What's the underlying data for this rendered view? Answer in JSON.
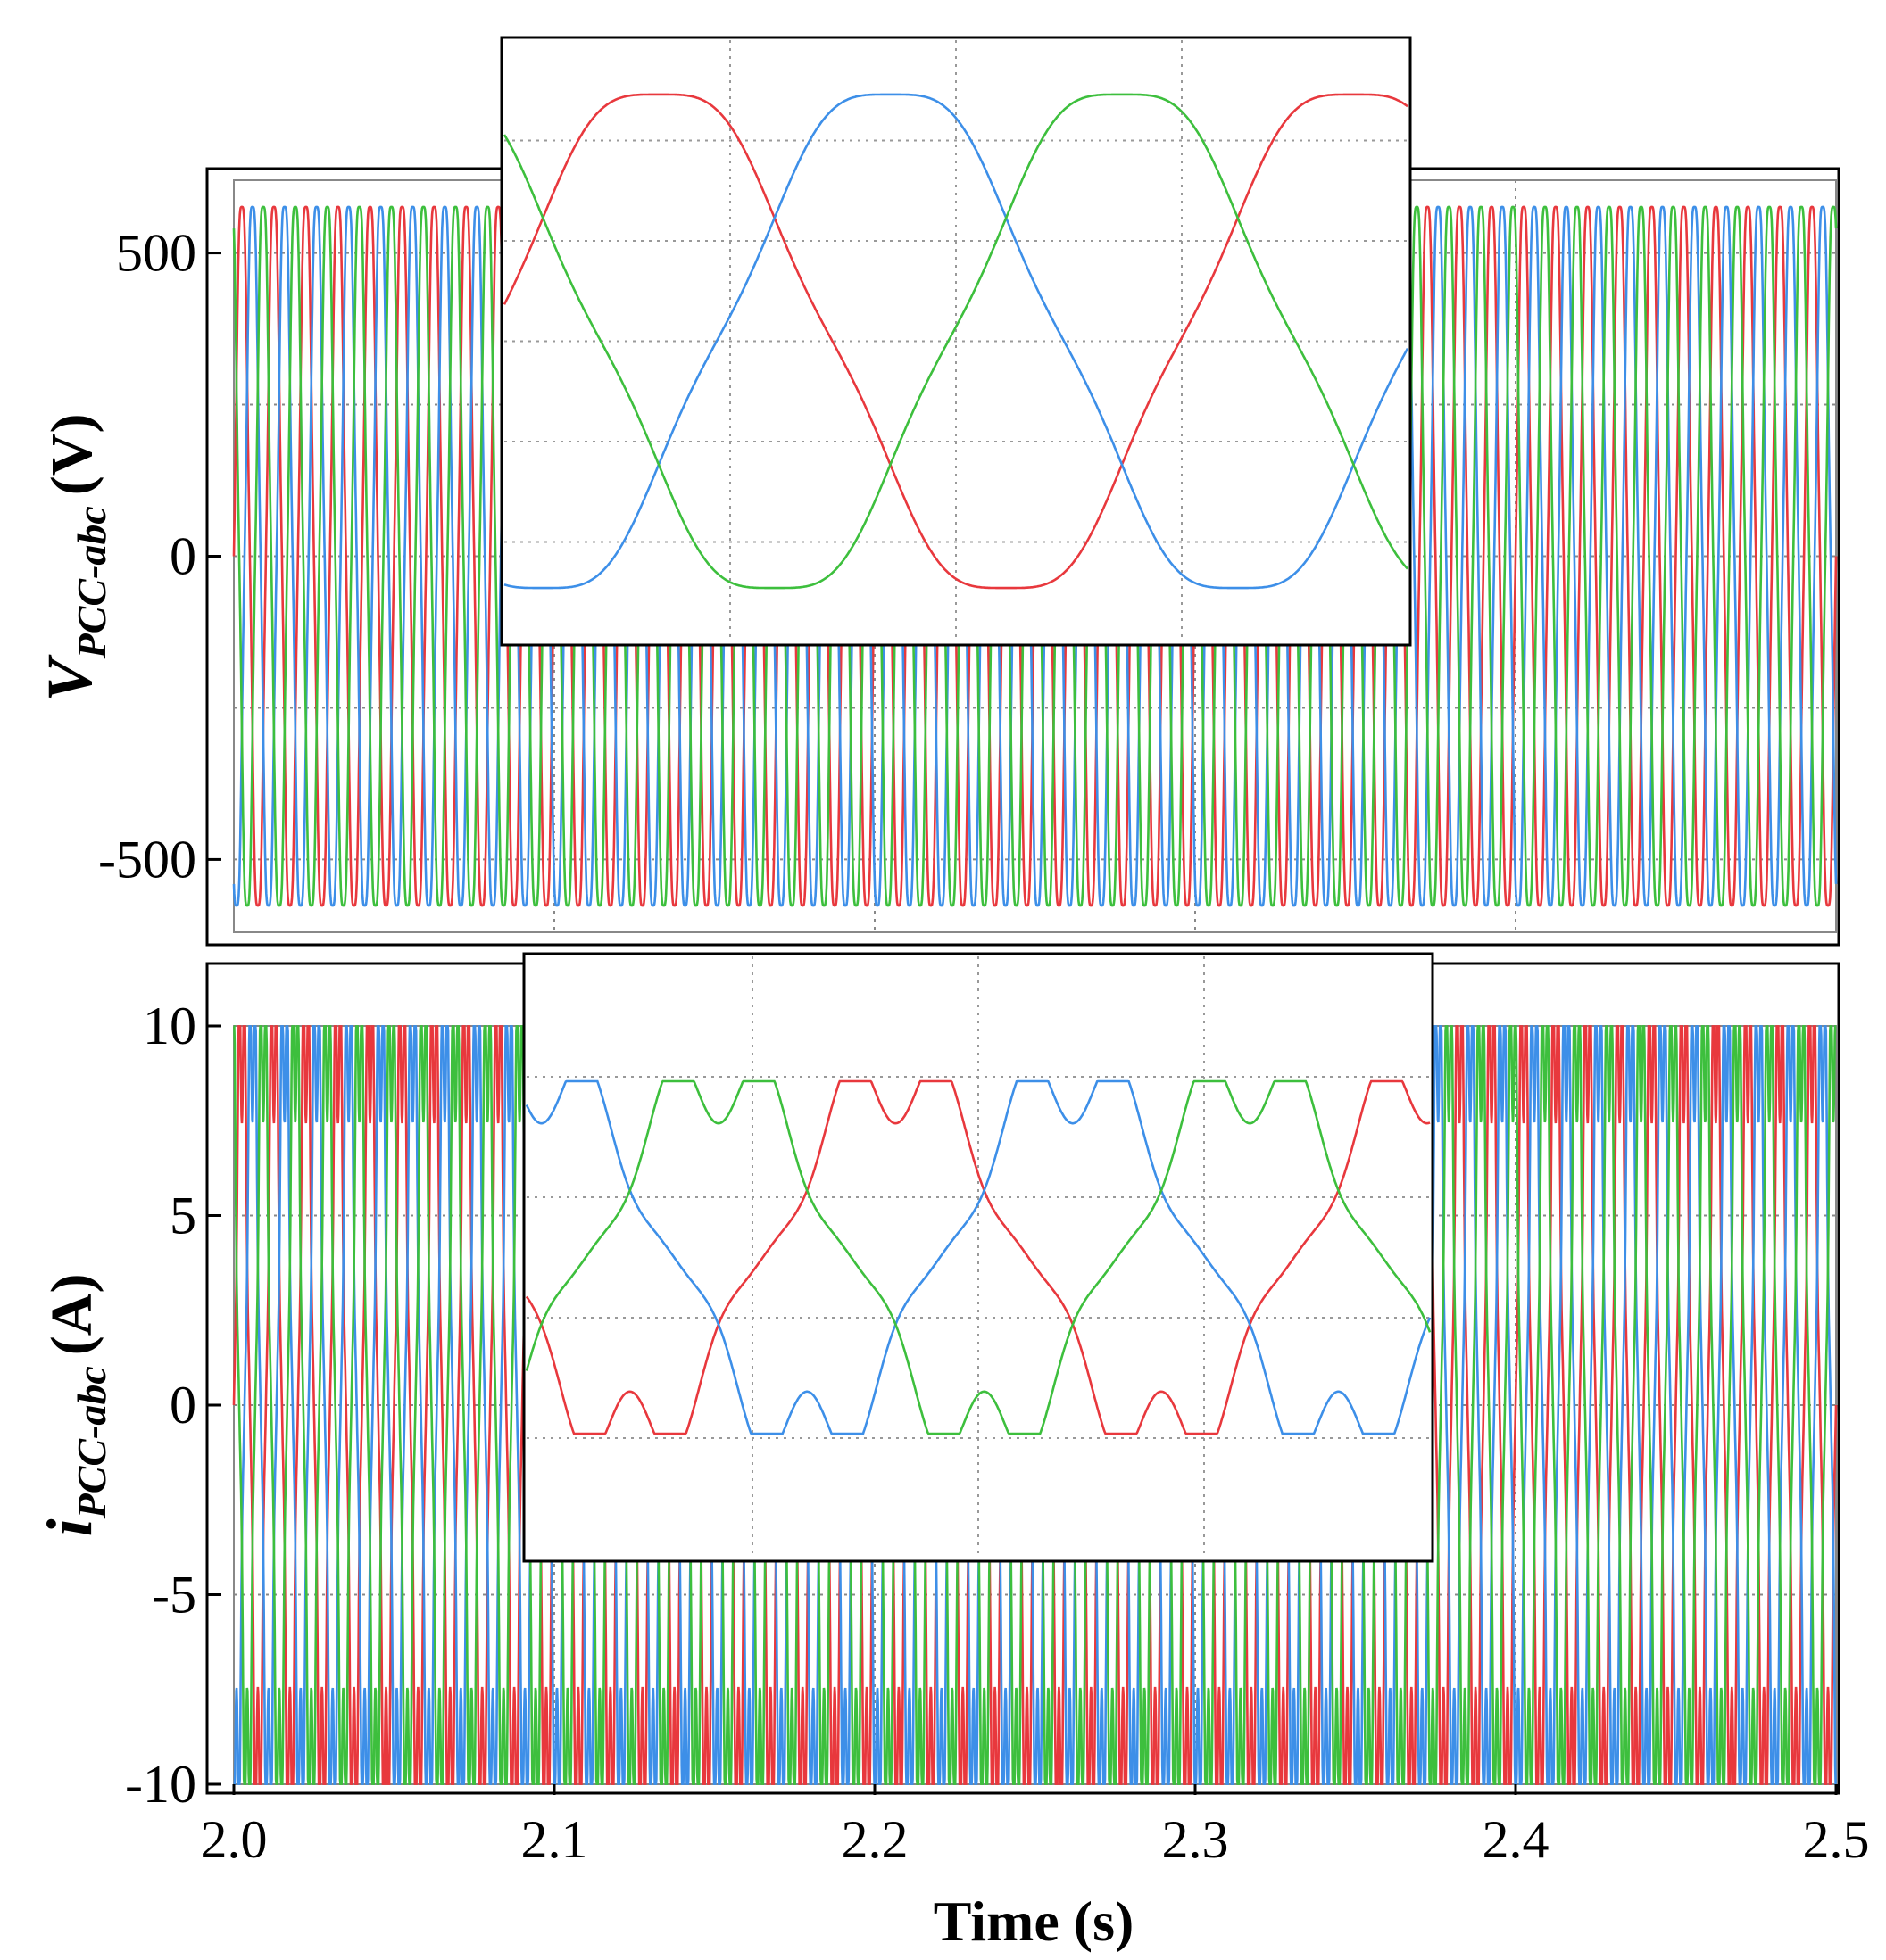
{
  "chart_data": [
    {
      "id": "voltage",
      "type": "line",
      "ylabel_main": "V",
      "ylabel_sub": "PCC-abc",
      "ylabel_unit": "(V)",
      "xlim": [
        2.0,
        2.5
      ],
      "ylim": [
        -620,
        620
      ],
      "yticks": [
        500,
        0,
        -500
      ],
      "ytick_labels": [
        "500",
        "0",
        "-500"
      ],
      "xgrid": [
        2.1,
        2.2,
        2.3,
        2.4
      ],
      "ygrid": [
        500,
        250,
        0,
        -250,
        -500
      ],
      "amplitude": 600,
      "frequency_hz": 100,
      "series": [
        {
          "color": "#e8383d",
          "phase_deg": 0
        },
        {
          "color": "#3d8fe8",
          "phase_deg": -120
        },
        {
          "color": "#3dbf3d",
          "phase_deg": 120
        }
      ],
      "inset": {
        "cycles": 1.3,
        "start_phase_deg": 10,
        "grid_cols": 3,
        "grid_rows": 5
      }
    },
    {
      "id": "current",
      "type": "line",
      "ylabel_main": "i",
      "ylabel_sub": "PCC-abc",
      "ylabel_unit": "(A)",
      "xlim": [
        2.0,
        2.5
      ],
      "ylim": [
        -10,
        10
      ],
      "yticks": [
        10,
        5,
        0,
        -5,
        -10
      ],
      "ytick_labels": [
        "10",
        "5",
        "0",
        "-5",
        "-10"
      ],
      "xgrid": [
        2.1,
        2.2,
        2.3,
        2.4
      ],
      "ygrid": [
        5,
        0,
        -5
      ],
      "amplitude": 9.3,
      "frequency_hz": 100,
      "series": [
        {
          "color": "#e8383d",
          "phase_deg": 0
        },
        {
          "color": "#3d8fe8",
          "phase_deg": -120
        },
        {
          "color": "#3dbf3d",
          "phase_deg": 120
        }
      ],
      "inset": {
        "cycles": 1.7,
        "start_phase_deg": 200,
        "grid_cols": 3,
        "grid_rows": 4
      }
    }
  ],
  "xaxis": {
    "ticks": [
      2.0,
      2.1,
      2.2,
      2.3,
      2.4,
      2.5
    ],
    "tick_labels": [
      "2.0",
      "2.1",
      "2.2",
      "2.3",
      "2.4",
      "2.5"
    ],
    "label": "Time (s)"
  }
}
